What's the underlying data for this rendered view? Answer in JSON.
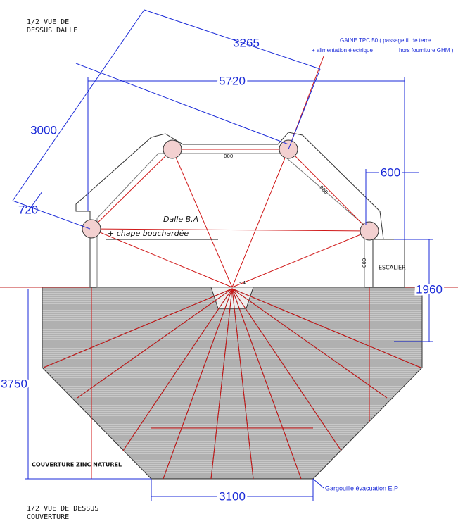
{
  "labels": {
    "top_view": [
      "1/2 VUE DE",
      "DESSUS DALLE"
    ],
    "bottom_view": [
      "1/2 VUE DE DESSUS",
      "COUVERTURE"
    ]
  },
  "dimensions": {
    "d3265": "3265",
    "d5720": "5720",
    "d3000": "3000",
    "d600": "600",
    "d720": "720",
    "d1960": "1960",
    "d3750": "3750",
    "d3100": "3100"
  },
  "notes": {
    "gaine": [
      "GAINE TPC 50 ( passage fil de terre",
      "+ alimentation électrique",
      "hors fourniture GHM )"
    ],
    "dalle": [
      "Dalle B.A",
      "+ chape bouchardée"
    ],
    "escalier": "ESCALIER",
    "couverture": "COUVERTURE ZINC NATUREL",
    "gargouille": "Gargouille évacuation E.P",
    "small": [
      "000",
      "- 4",
      "000",
      "000"
    ]
  }
}
